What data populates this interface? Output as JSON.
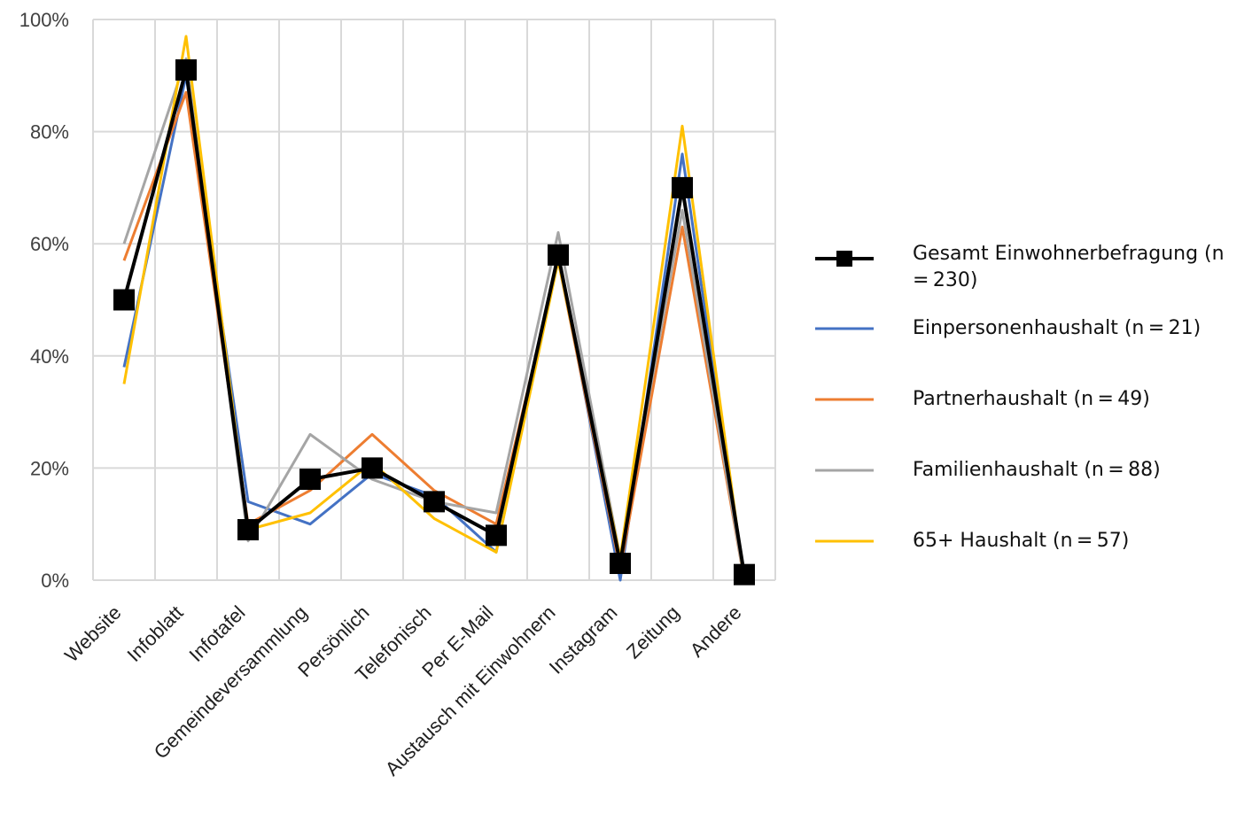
{
  "chart_data": {
    "type": "line",
    "categories": [
      "Website",
      "Infoblatt",
      "Infotafel",
      "Gemeindeversammlung",
      "Persönlich",
      "Telefonisch",
      "Per E-Mail",
      "Austausch mit Einwohnern",
      "Instagram",
      "Zeitung",
      "Andere"
    ],
    "ylim": [
      0,
      100
    ],
    "yticks": [
      "0%",
      "20%",
      "40%",
      "60%",
      "80%",
      "100%"
    ],
    "grid": true,
    "legend_position": "right",
    "series": [
      {
        "name": "Gesamt Einwohnerbefragung (n = 230)",
        "color": "#000000",
        "marker": "square",
        "values": [
          50,
          91,
          9,
          18,
          20,
          14,
          8,
          58,
          3,
          70,
          1
        ]
      },
      {
        "name": "Einpersonenhaushalt (n = 21)",
        "color": "#4472C4",
        "marker": "none",
        "values": [
          38,
          90,
          14,
          10,
          19,
          15,
          5,
          58,
          0,
          76,
          0
        ]
      },
      {
        "name": "Partnerhaushalt (n = 49)",
        "color": "#ED7D31",
        "marker": "none",
        "values": [
          57,
          87,
          10,
          16,
          26,
          16,
          10,
          57,
          2,
          63,
          0
        ]
      },
      {
        "name": "Familienhaushalt (n = 88)",
        "color": "#A5A5A5",
        "marker": "none",
        "values": [
          60,
          93,
          7,
          26,
          18,
          14,
          12,
          62,
          4,
          66,
          0
        ]
      },
      {
        "name": "65+ Haushalt (n = 57)",
        "color": "#FFC000",
        "marker": "none",
        "values": [
          35,
          97,
          9,
          12,
          21,
          11,
          5,
          57,
          4,
          81,
          0
        ]
      }
    ]
  }
}
